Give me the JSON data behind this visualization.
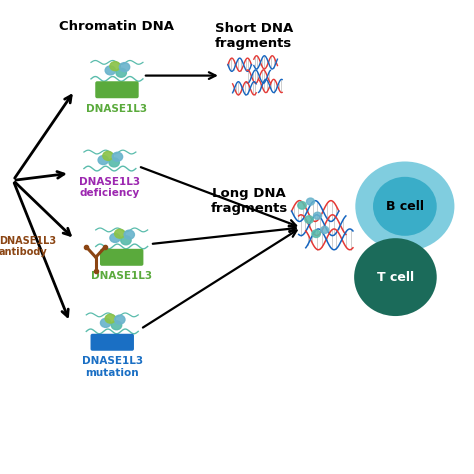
{
  "bg_color": "#ffffff",
  "chromatin_dna_label": "Chromatin DNA",
  "short_dna_label": "Short DNA\nfragments",
  "long_dna_label": "Long DNA\nfragments",
  "dnase1l3_label": "DNASE1L3",
  "dnase1l3_deficiency_label": "DNASE1L3\ndeficiency",
  "dnase1l3_antibody_label": "DNASE1L3\nantibody",
  "dnase1l3_mutation_label": "DNASE1L3\nmutation",
  "bcell_label": "B cell",
  "tcell_label": "T cell",
  "green_color": "#5aaa3c",
  "blue_color": "#1a6fc4",
  "light_blue_color": "#5abcdc",
  "purple_color": "#9c27b0",
  "brown_color": "#8b4513",
  "arrow_color": "#000000",
  "dna_red": "#e53935",
  "dna_blue": "#1565c0",
  "dnase_green_label_color": "#5aaa3c",
  "bcell_outer_color": "#72c8dc",
  "bcell_inner_color": "#3aadc8",
  "tcell_color": "#1b6b5a",
  "nucleosome_teal": "#5abcac",
  "nucleosome_olive": "#8bc34a",
  "nucleosome_blue": "#6ab4cc"
}
